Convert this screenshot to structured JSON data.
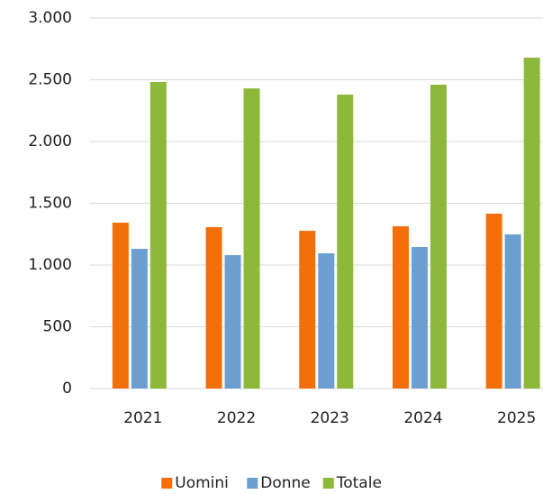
{
  "chart_data": {
    "type": "bar",
    "categories": [
      "2021",
      "2022",
      "2023",
      "2024",
      "2025"
    ],
    "series": [
      {
        "name": "Uomini",
        "color": "#f36f0a",
        "values": [
          1343,
          1307,
          1277,
          1314,
          1416
        ]
      },
      {
        "name": "Donne",
        "color": "#6a9fcf",
        "values": [
          1131,
          1080,
          1095,
          1146,
          1248
        ]
      },
      {
        "name": "Totale",
        "color": "#8db83a",
        "values": [
          2482,
          2430,
          2380,
          2460,
          2679
        ]
      }
    ],
    "ylim": [
      0,
      3000
    ],
    "yticks": [
      0,
      500,
      {
        "value": 1000,
        "label": "1.000"
      },
      {
        "value": 1500,
        "label": "1.500"
      },
      {
        "value": 2000,
        "label": "2.000"
      },
      {
        "value": 2500,
        "label": "2.500"
      },
      {
        "value": 3000,
        "label": "3.000"
      }
    ],
    "grid": true,
    "legend": "bottom"
  }
}
